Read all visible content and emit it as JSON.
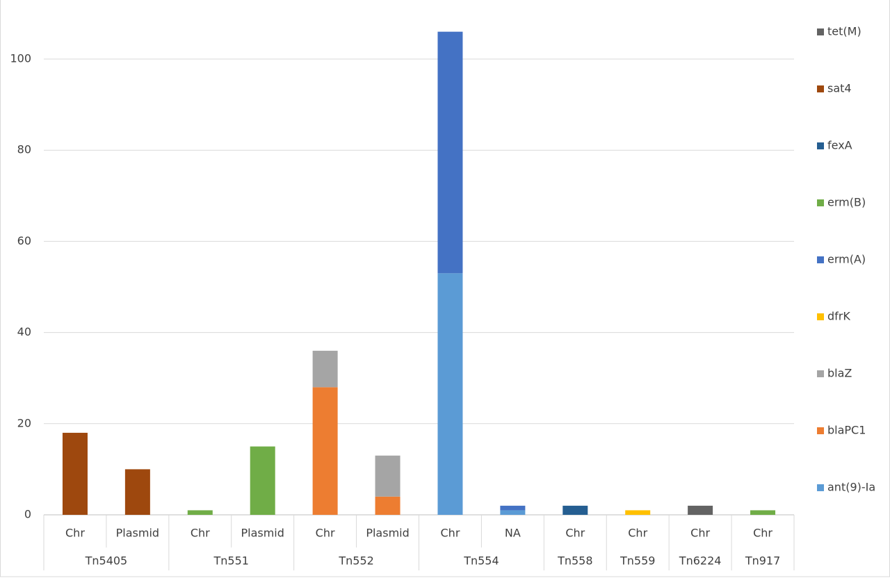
{
  "chart_data": {
    "type": "stacked-bar",
    "groups": [
      {
        "name": "Tn5405",
        "categories": [
          "Chr",
          "Plasmid"
        ]
      },
      {
        "name": "Tn551",
        "categories": [
          "Chr",
          "Plasmid"
        ]
      },
      {
        "name": "Tn552",
        "categories": [
          "Chr",
          "Plasmid"
        ]
      },
      {
        "name": "Tn554",
        "categories": [
          "Chr",
          "NA"
        ]
      },
      {
        "name": "Tn558",
        "categories": [
          "Chr"
        ]
      },
      {
        "name": "Tn559",
        "categories": [
          "Chr"
        ]
      },
      {
        "name": "Tn6224",
        "categories": [
          "Chr"
        ]
      },
      {
        "name": "Tn917",
        "categories": [
          "Chr"
        ]
      }
    ],
    "series": [
      {
        "name": "ant(9)-Ia",
        "color": "#5b9bd5",
        "values": [
          0,
          0,
          0,
          0,
          0,
          0,
          53,
          1,
          0,
          0,
          0,
          0
        ]
      },
      {
        "name": "blaPC1",
        "color": "#ed7d31",
        "values": [
          0,
          0,
          0,
          0,
          28,
          4,
          0,
          0,
          0,
          0,
          0,
          0
        ]
      },
      {
        "name": "blaZ",
        "color": "#a5a5a5",
        "values": [
          0,
          0,
          0,
          0,
          8,
          9,
          0,
          0,
          0,
          0,
          0,
          0
        ]
      },
      {
        "name": "dfrK",
        "color": "#ffc000",
        "values": [
          0,
          0,
          0,
          0,
          0,
          0,
          0,
          0,
          0,
          1,
          0,
          0
        ]
      },
      {
        "name": "erm(A)",
        "color": "#4472c4",
        "values": [
          0,
          0,
          0,
          0,
          0,
          0,
          53,
          1,
          0,
          0,
          0,
          0
        ]
      },
      {
        "name": "erm(B)",
        "color": "#70ad47",
        "values": [
          0,
          0,
          1,
          15,
          0,
          0,
          0,
          0,
          0,
          0,
          0,
          1
        ]
      },
      {
        "name": "fexA",
        "color": "#255e91",
        "values": [
          0,
          0,
          0,
          0,
          0,
          0,
          0,
          0,
          2,
          0,
          0,
          0
        ]
      },
      {
        "name": "sat4",
        "color": "#9e480e",
        "values": [
          18,
          10,
          0,
          0,
          0,
          0,
          0,
          0,
          0,
          0,
          0,
          0
        ]
      },
      {
        "name": "tet(M)",
        "color": "#636363",
        "values": [
          0,
          0,
          0,
          0,
          0,
          0,
          0,
          0,
          0,
          0,
          2,
          0
        ]
      }
    ],
    "ylim": [
      0,
      110
    ],
    "yticks": [
      0,
      20,
      40,
      60,
      80,
      100
    ],
    "grid": true,
    "legend": "right"
  }
}
